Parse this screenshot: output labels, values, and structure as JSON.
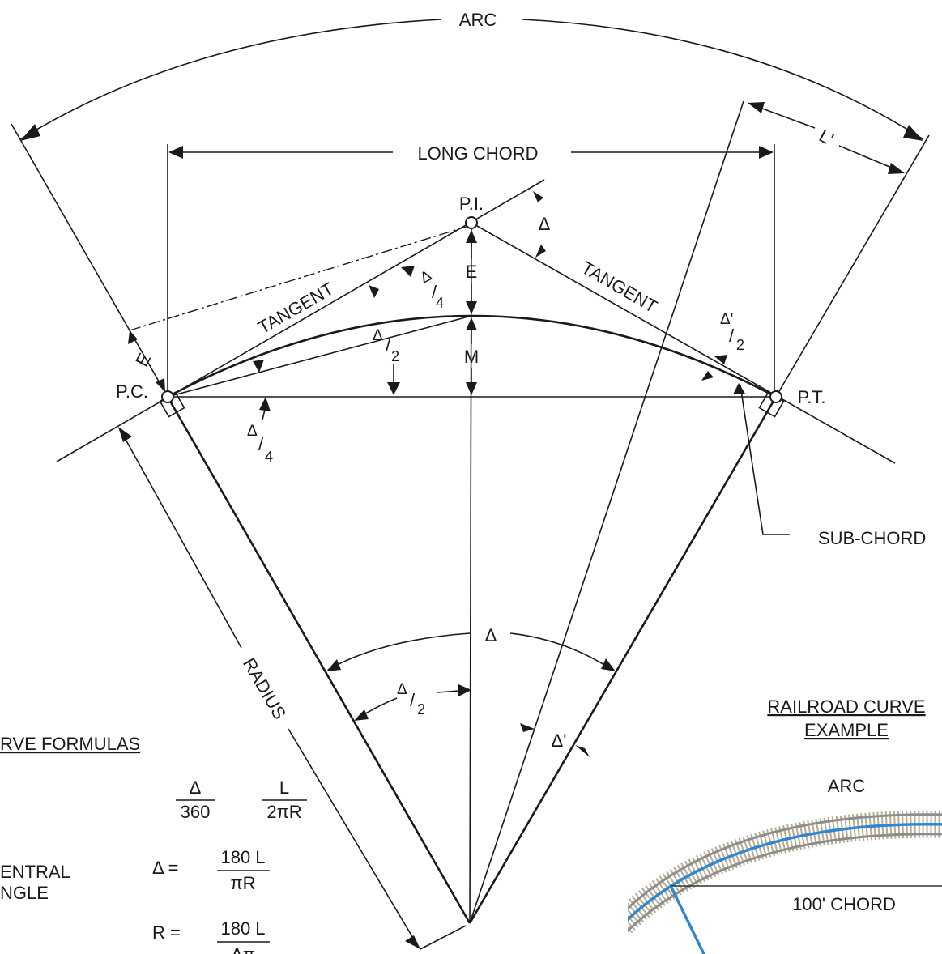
{
  "labels": {
    "arc": "ARC",
    "long_chord": "LONG CHORD",
    "pi": "P.I.",
    "pc": "P.C.",
    "pt": "P.T.",
    "tangent_left": "TANGENT",
    "tangent_right": "TANGENT",
    "radius": "RADIUS",
    "sub_chord": "SUB-CHORD",
    "l_prime": "L'",
    "e": "E",
    "m": "M",
    "delta": "Δ",
    "delta_prime": "Δ'",
    "delta_num": "Δ",
    "delta_prime_num": "Δ'",
    "slash": "/",
    "den_2": "2",
    "den_4": "4"
  },
  "formulas": {
    "heading": "RVE FORMULAS",
    "ratio_num_1": "Δ",
    "ratio_den_1": "360",
    "ratio_num_2": "L",
    "ratio_den_2": "2πR",
    "central_line1": "ENTRAL",
    "central_line2": "NGLE",
    "delta_lhs": "Δ  =",
    "delta_num": "180 L",
    "delta_den": "πR",
    "r_lhs": "R  =",
    "r_num": "180 L",
    "r_den": "Δπ"
  },
  "example": {
    "heading_line1": "RAILROAD CURVE",
    "heading_line2": "EXAMPLE",
    "arc": "ARC",
    "chord": "100' CHORD"
  },
  "colors": {
    "line": "#1a1a1a",
    "track_blue": "#2f86d1",
    "rail": "#8d8d8d",
    "ties": "#b9ab92"
  }
}
